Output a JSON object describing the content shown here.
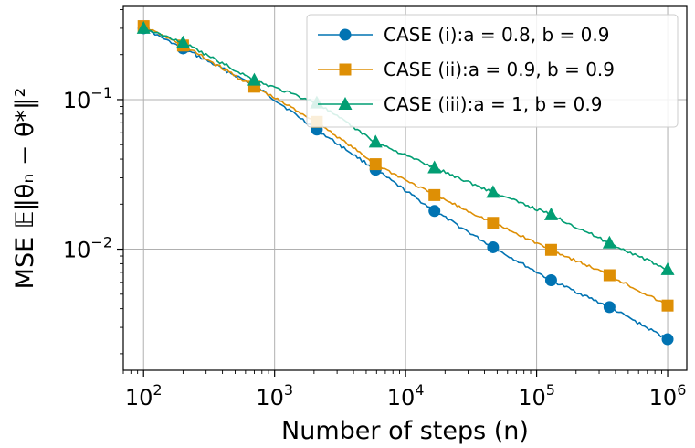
{
  "chart_data": {
    "type": "line",
    "xscale": "log",
    "yscale": "log",
    "xlabel": "Number of steps (n)",
    "ylabel": "MSE 𝔼‖θₙ − θ*‖²",
    "xlim": [
      70,
      1400000
    ],
    "ylim": [
      0.00155,
      0.42
    ],
    "grid": true,
    "legend_position": "top-right",
    "x_ticks": [
      {
        "value": 100,
        "mantissa": "10",
        "exp": "2"
      },
      {
        "value": 1000,
        "mantissa": "10",
        "exp": "3"
      },
      {
        "value": 10000,
        "mantissa": "10",
        "exp": "4"
      },
      {
        "value": 100000,
        "mantissa": "10",
        "exp": "5"
      },
      {
        "value": 1000000,
        "mantissa": "10",
        "exp": "6"
      }
    ],
    "y_ticks": [
      {
        "value": 0.1,
        "mantissa": "10",
        "exp": "−1"
      },
      {
        "value": 0.01,
        "mantissa": "10",
        "exp": "−2"
      }
    ],
    "series": [
      {
        "name": "CASE (i):a = 0.8, b = 0.9",
        "color": "#0173b2",
        "marker": "circle",
        "x": [
          100,
          200,
          700,
          2100,
          5900,
          16600,
          46500,
          129000,
          360000,
          1000000
        ],
        "y": [
          0.3,
          0.22,
          0.125,
          0.063,
          0.034,
          0.018,
          0.0103,
          0.0062,
          0.0041,
          0.0025
        ]
      },
      {
        "name": "CASE (ii):a = 0.9, b = 0.9",
        "color": "#de8f05",
        "marker": "square",
        "x": [
          100,
          200,
          700,
          2100,
          5900,
          16600,
          46500,
          129000,
          360000,
          1000000
        ],
        "y": [
          0.31,
          0.23,
          0.122,
          0.071,
          0.037,
          0.023,
          0.015,
          0.0099,
          0.0067,
          0.0042
        ]
      },
      {
        "name": "CASE (iii):a = 1, b = 0.9",
        "color": "#029e73",
        "marker": "triangle",
        "x": [
          100,
          200,
          700,
          2100,
          5900,
          16600,
          46500,
          129000,
          360000,
          1000000
        ],
        "y": [
          0.3,
          0.24,
          0.135,
          0.095,
          0.052,
          0.035,
          0.024,
          0.017,
          0.011,
          0.0073
        ]
      }
    ]
  }
}
